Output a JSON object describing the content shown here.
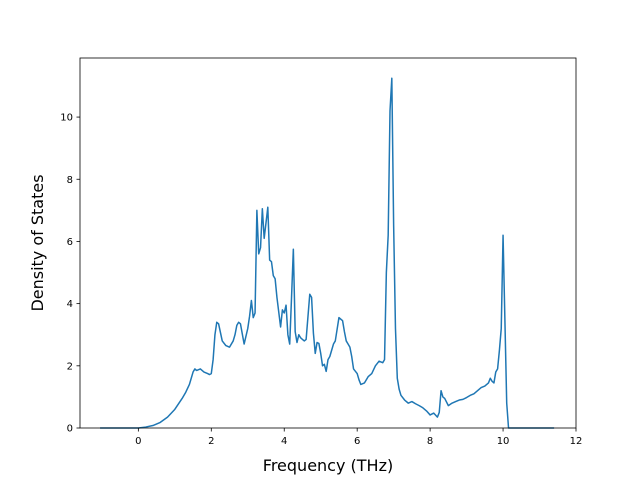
{
  "chart_data": {
    "type": "line",
    "title": "",
    "xlabel": "Frequency (THz)",
    "ylabel": "Density of States",
    "xlim": [
      -1.6,
      12.0
    ],
    "ylim": [
      0,
      11.9
    ],
    "xticks": [
      0,
      2,
      4,
      6,
      8,
      10,
      12
    ],
    "yticks": [
      0,
      2,
      4,
      6,
      8,
      10
    ],
    "grid": false,
    "legend": "none",
    "series": [
      {
        "color": "#1f77b4",
        "x": [
          -1.05,
          0.0,
          0.2,
          0.4,
          0.6,
          0.8,
          1.0,
          1.2,
          1.3,
          1.4,
          1.5,
          1.55,
          1.6,
          1.7,
          1.8,
          1.9,
          1.95,
          2.0,
          2.05,
          2.1,
          2.15,
          2.2,
          2.3,
          2.4,
          2.5,
          2.6,
          2.65,
          2.7,
          2.75,
          2.8,
          2.9,
          3.0,
          3.05,
          3.1,
          3.15,
          3.2,
          3.25,
          3.3,
          3.35,
          3.4,
          3.45,
          3.5,
          3.55,
          3.6,
          3.65,
          3.7,
          3.75,
          3.8,
          3.9,
          3.95,
          4.0,
          4.05,
          4.1,
          4.15,
          4.2,
          4.25,
          4.3,
          4.35,
          4.4,
          4.45,
          4.5,
          4.55,
          4.6,
          4.7,
          4.75,
          4.8,
          4.85,
          4.9,
          4.95,
          5.0,
          5.05,
          5.1,
          5.15,
          5.2,
          5.25,
          5.3,
          5.35,
          5.4,
          5.5,
          5.6,
          5.65,
          5.7,
          5.75,
          5.8,
          5.85,
          5.9,
          6.0,
          6.05,
          6.1,
          6.2,
          6.3,
          6.4,
          6.5,
          6.6,
          6.7,
          6.75,
          6.8,
          6.85,
          6.9,
          6.95,
          7.0,
          7.05,
          7.1,
          7.15,
          7.2,
          7.3,
          7.4,
          7.5,
          7.6,
          7.7,
          7.8,
          7.9,
          8.0,
          8.1,
          8.2,
          8.25,
          8.3,
          8.35,
          8.4,
          8.5,
          8.6,
          8.7,
          8.8,
          8.9,
          9.0,
          9.1,
          9.2,
          9.3,
          9.4,
          9.5,
          9.6,
          9.65,
          9.7,
          9.75,
          9.8,
          9.85,
          9.9,
          9.95,
          10.0,
          10.05,
          10.1,
          10.15,
          10.2,
          10.25,
          10.3,
          10.35,
          10.4,
          10.5,
          11.4
        ],
        "y": [
          0.0,
          0.0,
          0.03,
          0.08,
          0.18,
          0.35,
          0.6,
          0.95,
          1.15,
          1.4,
          1.8,
          1.9,
          1.85,
          1.9,
          1.8,
          1.75,
          1.72,
          1.75,
          2.2,
          3.0,
          3.4,
          3.35,
          2.8,
          2.65,
          2.6,
          2.8,
          3.0,
          3.3,
          3.4,
          3.35,
          2.7,
          3.2,
          3.6,
          4.1,
          3.55,
          3.7,
          7.0,
          5.6,
          5.8,
          7.05,
          6.1,
          6.6,
          7.1,
          5.4,
          5.35,
          4.9,
          4.8,
          4.2,
          3.25,
          3.8,
          3.7,
          3.95,
          3.0,
          2.7,
          4.2,
          5.75,
          3.1,
          2.75,
          3.0,
          2.9,
          2.85,
          2.8,
          2.85,
          4.3,
          4.2,
          3.05,
          2.4,
          2.75,
          2.72,
          2.4,
          2.0,
          2.05,
          1.82,
          2.2,
          2.3,
          2.5,
          2.7,
          2.8,
          3.55,
          3.45,
          3.1,
          2.8,
          2.7,
          2.6,
          2.3,
          1.9,
          1.75,
          1.55,
          1.4,
          1.45,
          1.65,
          1.75,
          2.0,
          2.15,
          2.1,
          2.2,
          5.0,
          6.2,
          10.2,
          11.25,
          6.5,
          3.2,
          1.6,
          1.25,
          1.05,
          0.9,
          0.8,
          0.85,
          0.78,
          0.72,
          0.65,
          0.55,
          0.42,
          0.48,
          0.35,
          0.5,
          1.2,
          1.0,
          0.95,
          0.72,
          0.8,
          0.85,
          0.9,
          0.92,
          0.98,
          1.05,
          1.1,
          1.2,
          1.3,
          1.35,
          1.45,
          1.6,
          1.5,
          1.45,
          1.8,
          1.9,
          2.5,
          3.2,
          6.2,
          3.5,
          0.8,
          0.0,
          0.0,
          0.0,
          0.0,
          0.0,
          0.0,
          0.0,
          0.0
        ]
      }
    ]
  }
}
